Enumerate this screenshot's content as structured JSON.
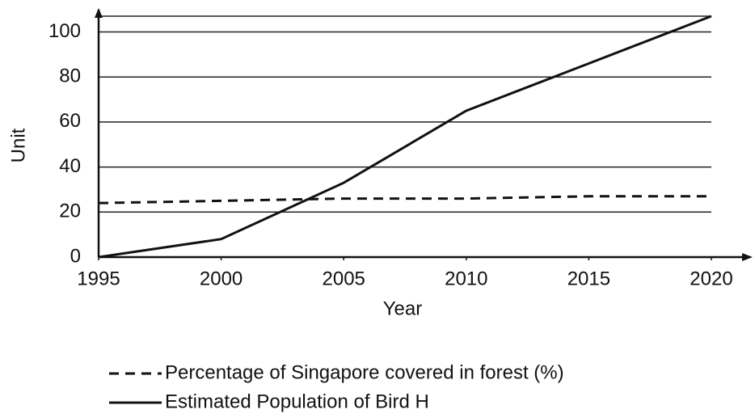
{
  "chart_data": {
    "type": "line",
    "x": [
      1995,
      2000,
      2005,
      2010,
      2015,
      2020
    ],
    "series": [
      {
        "name": "Percentage of Singapore covered in forest (%)",
        "color": "#111111",
        "dash": true,
        "values": [
          24,
          25,
          26,
          26,
          27,
          27
        ]
      },
      {
        "name": "Estimated Population of Bird H",
        "color": "#111111",
        "dash": false,
        "values": [
          0,
          8,
          33,
          65,
          86,
          107
        ]
      }
    ],
    "xlabel": "Year",
    "ylabel": "Unit",
    "xlim": [
      1995,
      2020
    ],
    "xticks": [
      1995,
      2000,
      2005,
      2010,
      2015,
      2020
    ],
    "ylim": [
      0,
      107
    ],
    "yticks": [
      0,
      20,
      40,
      60,
      80,
      100
    ],
    "grid": true,
    "legend": "bottom"
  }
}
